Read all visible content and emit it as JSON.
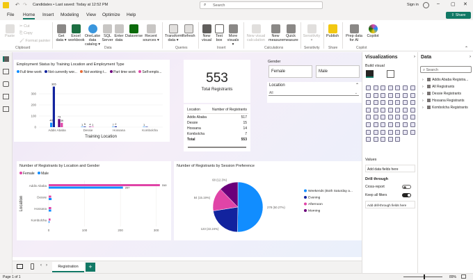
{
  "app": {
    "title": "Candidates",
    "save_status": "Last saved: Today at 12:52 PM",
    "search_placeholder": "Search",
    "sign_in": "Sign in",
    "share": "Share"
  },
  "menu": [
    "File",
    "Home",
    "Insert",
    "Modeling",
    "View",
    "Optimize",
    "Help"
  ],
  "ribbon": {
    "clipboard": [
      "Paste",
      "Cut",
      "Copy",
      "Format painter"
    ],
    "data": [
      "Get data",
      "Excel workbook",
      "OneLake data catalog",
      "SQL Server",
      "Enter data",
      "Dataverse",
      "Recent sources"
    ],
    "queries": [
      "Transform data",
      "Refresh"
    ],
    "insert": [
      "New visual",
      "Text box",
      "More visuals"
    ],
    "calc": [
      "New visual calculation",
      "New measure",
      "Quick measure"
    ],
    "sens": [
      "Sensitivity"
    ],
    "share": [
      "Publish"
    ],
    "copilot": [
      "Prep data for AI",
      "Copilot"
    ],
    "groups": [
      "Clipboard",
      "Data",
      "Queries",
      "Insert",
      "Calculations",
      "Sensitivity",
      "Share",
      "Copilot"
    ]
  },
  "card": {
    "value": "553",
    "label": "Total Registrants"
  },
  "gender": {
    "title": "Gender",
    "options": [
      "Female",
      "Male"
    ]
  },
  "location_slicer": {
    "title": "Location",
    "value": "All"
  },
  "table": {
    "headers": [
      "Location",
      "Number of Registrants"
    ],
    "rows": [
      [
        "Addis Ababa",
        "517"
      ],
      [
        "Dessie",
        "15"
      ],
      [
        "Hossana",
        "14"
      ],
      [
        "Kombolcha",
        "7"
      ]
    ],
    "total": [
      "Total",
      "553"
    ]
  },
  "chart_data": [
    {
      "type": "bar",
      "title": "Employment Status by Training Location and Employment Type",
      "xlabel": "Training Location",
      "ylabel": "",
      "categories": [
        "Addis Ababa",
        "Dessie",
        "Hossana",
        "Kombolcha"
      ],
      "ylim": [
        0,
        400
      ],
      "yticks": [
        "0",
        "100",
        "200",
        "300"
      ],
      "series": [
        {
          "name": "Full time work",
          "color": "#118dff",
          "values": [
            40,
            1,
            1,
            1
          ]
        },
        {
          "name": "Not currently wor...",
          "color": "#12239e",
          "values": [
            365,
            5,
            7,
            2
          ]
        },
        {
          "name": "Not working t...",
          "color": "#e66c37",
          "values": [
            0,
            0,
            0,
            0
          ]
        },
        {
          "name": "Part time work",
          "color": "#6b007b",
          "values": [
            73,
            4,
            0,
            0
          ]
        },
        {
          "name": "Self-emplo...",
          "color": "#e044a7",
          "values": [
            39,
            1,
            0,
            0
          ]
        }
      ],
      "labels": [
        "40",
        "365",
        "73",
        "39",
        "1",
        "5",
        "4",
        "1",
        "7",
        "2",
        "1"
      ]
    },
    {
      "type": "bar",
      "orientation": "horizontal",
      "title": "Number of Registrants by Location and Gender",
      "ylabel": "Location",
      "categories": [
        "Addis Ababa",
        "Dessie",
        "Hossana",
        "Kombolcha"
      ],
      "xlim": [
        0,
        320
      ],
      "xticks": [
        "0",
        "100",
        "200",
        "300"
      ],
      "series": [
        {
          "name": "Female",
          "color": "#e044a7",
          "values": [
            310,
            7,
            7,
            5
          ]
        },
        {
          "name": "Male",
          "color": "#118dff",
          "values": [
            207,
            8,
            7,
            2
          ]
        }
      ],
      "labels": [
        "310",
        "207"
      ]
    },
    {
      "type": "pie",
      "title": "Number of Registrants by Session Preference",
      "slices": [
        {
          "name": "Weekends (Both Saturday a...",
          "value": 278,
          "label": "278 (50.27%)",
          "color": "#118dff"
        },
        {
          "name": "Evening",
          "value": 123,
          "label": "123 (22.24%)",
          "color": "#12239e"
        },
        {
          "name": "Afternoon",
          "value": 84,
          "label": "84 (15.19%)",
          "color": "#e044a7"
        },
        {
          "name": "Morning",
          "value": 68,
          "label": "68 (12.3%)",
          "color": "#6b007b"
        }
      ]
    }
  ],
  "viz": {
    "title": "Visualizations",
    "build": "Build visual",
    "values": "Values",
    "add_data": "Add data fields here",
    "drill": "Drill through",
    "cross": "Cross-report",
    "keep": "Keep all filters",
    "add_drill": "Add drill-through fields here"
  },
  "datapane": {
    "title": "Data",
    "search": "Search",
    "tables": [
      "Addis Ababa Registra...",
      "All Registrants",
      "Dessie Registrants",
      "Hossana Registrants",
      "Kombolcha Registrants"
    ]
  },
  "tabs": {
    "page": "Registration",
    "add": "+"
  },
  "status": {
    "page": "Page 1 of 1",
    "zoom": "89%"
  }
}
